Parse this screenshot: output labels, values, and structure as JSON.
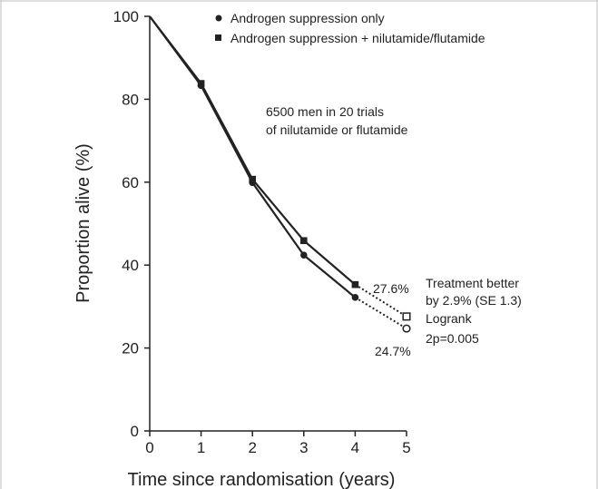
{
  "chart_data": {
    "type": "line",
    "xlabel": "Time since randomisation (years)",
    "ylabel": "Proportion alive (%)",
    "xlim": [
      0,
      5
    ],
    "ylim": [
      0,
      100
    ],
    "x_ticks": [
      "0",
      "1",
      "2",
      "3",
      "4",
      "5"
    ],
    "y_ticks": [
      "0",
      "20",
      "40",
      "60",
      "80",
      "100"
    ],
    "grid": false,
    "legend_position": "top",
    "series": [
      {
        "name": "Androgen suppression only",
        "marker": "circle",
        "solid": [
          [
            0,
            100
          ],
          [
            1,
            83.3
          ],
          [
            2,
            59.9
          ],
          [
            3,
            42.4
          ],
          [
            4,
            32.2
          ]
        ],
        "dotted": [
          [
            4,
            32.2
          ],
          [
            5,
            24.7
          ]
        ],
        "end_value": [
          5,
          24.7
        ],
        "end_label": "24.7%"
      },
      {
        "name": "Androgen suppression + nilutamide/flutamide",
        "marker": "square",
        "solid": [
          [
            0,
            100
          ],
          [
            1,
            83.8
          ],
          [
            2,
            60.7
          ],
          [
            3,
            45.9
          ],
          [
            4,
            35.3
          ]
        ],
        "dotted": [
          [
            4,
            35.3
          ],
          [
            5,
            27.6
          ]
        ],
        "end_value": [
          5,
          27.6
        ],
        "end_label": "27.6%"
      }
    ],
    "annotations": {
      "population_line1": "6500 men in 20 trials",
      "population_line2": "of nilutamide or flutamide",
      "result_line1": "Treatment better",
      "result_line2": "by 2.9% (SE 1.3)",
      "result_line3": "Logrank",
      "result_line4": "2p=0.005"
    },
    "colors": {
      "line": "#222222",
      "frame": "#bfbfbf"
    }
  }
}
